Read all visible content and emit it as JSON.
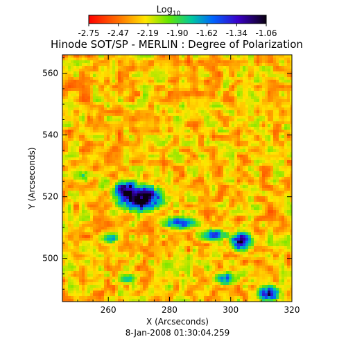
{
  "chart_data": {
    "type": "heatmap",
    "title": "Hinode SOT/SP - MERLIN : Degree of Polarization",
    "colorbar": {
      "label_main": "Log",
      "label_sub": "10",
      "ticks": [
        "-2.75",
        "-2.47",
        "-2.19",
        "-1.90",
        "-1.62",
        "-1.34",
        "-1.06"
      ],
      "range": [
        -2.75,
        -1.06
      ],
      "colormap": "rainbow",
      "placement": "top"
    },
    "xlabel": "X (Arcseconds)",
    "ylabel": "Y (Arcseconds)",
    "xlim": [
      245,
      320
    ],
    "ylim": [
      486,
      566
    ],
    "xticks": [
      260,
      280,
      300,
      320
    ],
    "yticks": [
      500,
      520,
      540,
      560
    ],
    "xtick_labels": [
      "260",
      "280",
      "300",
      "320"
    ],
    "ytick_labels": [
      "500",
      "520",
      "540",
      "560"
    ],
    "strong_regions": [
      {
        "x": 270,
        "y": 520,
        "rx": 8,
        "ry": 4.5,
        "level": 1.0
      },
      {
        "x": 266,
        "y": 522,
        "rx": 5,
        "ry": 4,
        "level": 0.95
      },
      {
        "x": 283,
        "y": 512,
        "rx": 7,
        "ry": 2.5,
        "level": 0.7
      },
      {
        "x": 294,
        "y": 508,
        "rx": 6,
        "ry": 2.5,
        "level": 0.65
      },
      {
        "x": 303,
        "y": 506,
        "rx": 4,
        "ry": 3.5,
        "level": 0.85
      },
      {
        "x": 260,
        "y": 507,
        "rx": 4,
        "ry": 2.5,
        "level": 0.55
      },
      {
        "x": 298,
        "y": 494,
        "rx": 5,
        "ry": 2.5,
        "level": 0.6
      },
      {
        "x": 312,
        "y": 489,
        "rx": 4,
        "ry": 3,
        "level": 0.8
      },
      {
        "x": 266,
        "y": 494,
        "rx": 4,
        "ry": 2,
        "level": 0.55
      },
      {
        "x": 251,
        "y": 527,
        "rx": 4,
        "ry": 2.5,
        "level": 0.45
      },
      {
        "x": 308,
        "y": 517,
        "rx": 3,
        "ry": 2,
        "level": 0.4
      },
      {
        "x": 318,
        "y": 543,
        "rx": 2.5,
        "ry": 2,
        "level": 0.35
      }
    ]
  },
  "footer": {
    "timestamp": "8-Jan-2008 01:30:04.259"
  }
}
